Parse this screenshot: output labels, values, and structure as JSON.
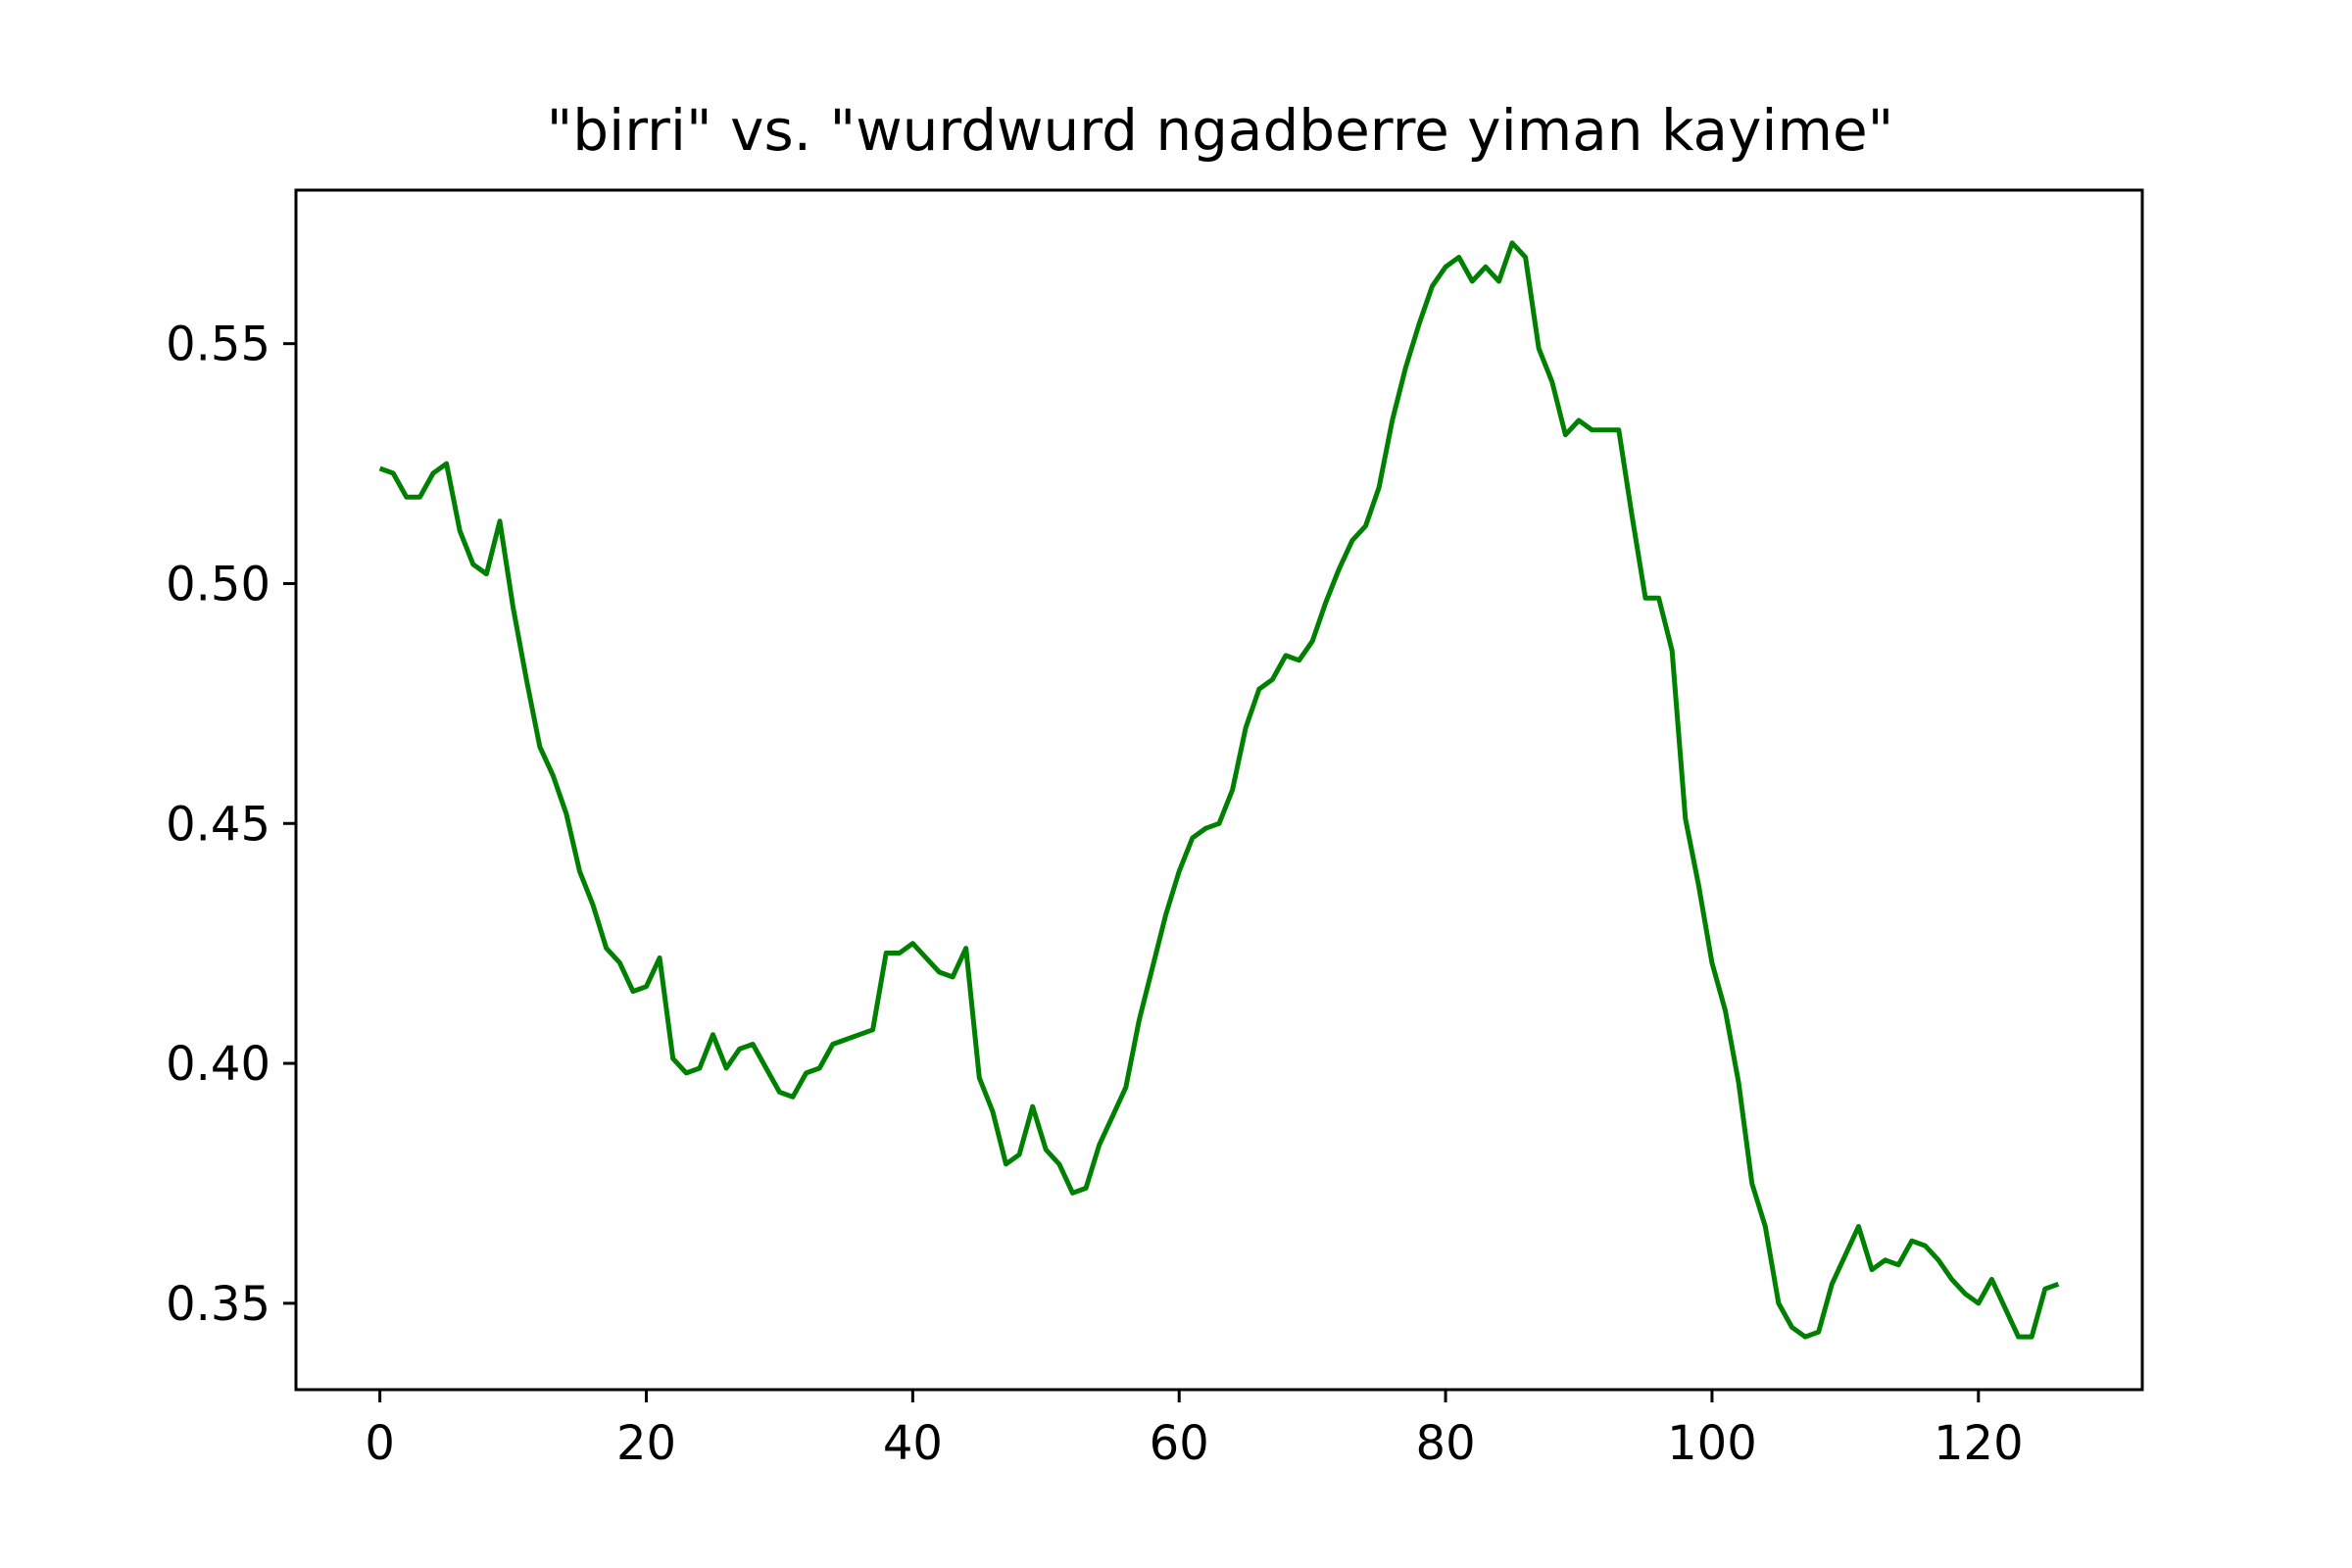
{
  "chart_data": {
    "type": "line",
    "title": "\"birri\" vs. \"wurdwurd ngadberre yiman kayime\"",
    "xlabel": "",
    "ylabel": "",
    "xlim": [
      -6.3,
      132.3
    ],
    "ylim": [
      0.332,
      0.582
    ],
    "xticks": [
      0,
      20,
      40,
      60,
      80,
      100,
      120
    ],
    "xtick_labels": [
      "0",
      "20",
      "40",
      "60",
      "80",
      "100",
      "120"
    ],
    "yticks": [
      0.35,
      0.4,
      0.45,
      0.5,
      0.55
    ],
    "ytick_labels": [
      "0.35",
      "0.40",
      "0.45",
      "0.50",
      "0.55"
    ],
    "grid": false,
    "legend": "none",
    "series": [
      {
        "color": "#008000",
        "x": [
          0,
          1,
          2,
          3,
          4,
          5,
          6,
          7,
          8,
          9,
          10,
          11,
          12,
          13,
          14,
          15,
          16,
          17,
          18,
          19,
          20,
          21,
          22,
          23,
          24,
          25,
          26,
          27,
          28,
          29,
          30,
          31,
          32,
          33,
          34,
          35,
          36,
          37,
          38,
          39,
          40,
          41,
          42,
          43,
          44,
          45,
          46,
          47,
          48,
          49,
          50,
          51,
          52,
          53,
          54,
          55,
          56,
          57,
          58,
          59,
          60,
          61,
          62,
          63,
          64,
          65,
          66,
          67,
          68,
          69,
          70,
          71,
          72,
          73,
          74,
          75,
          76,
          77,
          78,
          79,
          80,
          81,
          82,
          83,
          84,
          85,
          86,
          87,
          88,
          89,
          90,
          91,
          92,
          93,
          94,
          95,
          96,
          97,
          98,
          99,
          100,
          101,
          102,
          103,
          104,
          105,
          106,
          107,
          108,
          109,
          110,
          111,
          112,
          113,
          114,
          115,
          116,
          117,
          118,
          119,
          120,
          121,
          122,
          123,
          124,
          125,
          126
        ],
        "y": [
          0.524,
          0.523,
          0.518,
          0.518,
          0.523,
          0.525,
          0.511,
          0.504,
          0.502,
          0.513,
          0.495,
          0.48,
          0.466,
          0.46,
          0.452,
          0.44,
          0.433,
          0.424,
          0.421,
          0.415,
          0.416,
          0.422,
          0.401,
          0.398,
          0.399,
          0.406,
          0.399,
          0.403,
          0.404,
          0.399,
          0.394,
          0.393,
          0.398,
          0.399,
          0.404,
          0.405,
          0.406,
          0.407,
          0.423,
          0.423,
          0.425,
          0.422,
          0.419,
          0.418,
          0.424,
          0.397,
          0.39,
          0.379,
          0.381,
          0.391,
          0.382,
          0.379,
          0.373,
          0.374,
          0.383,
          0.389,
          0.395,
          0.409,
          0.42,
          0.431,
          0.44,
          0.447,
          0.449,
          0.45,
          0.457,
          0.47,
          0.478,
          0.48,
          0.485,
          0.484,
          0.488,
          0.496,
          0.503,
          0.509,
          0.512,
          0.52,
          0.534,
          0.545,
          0.554,
          0.562,
          0.566,
          0.568,
          0.563,
          0.566,
          0.563,
          0.571,
          0.568,
          0.549,
          0.542,
          0.531,
          0.534,
          0.532,
          0.532,
          0.532,
          0.514,
          0.497,
          0.497,
          0.486,
          0.451,
          0.437,
          0.421,
          0.411,
          0.396,
          0.375,
          0.366,
          0.35,
          0.345,
          0.343,
          0.344,
          0.354,
          0.36,
          0.366,
          0.357,
          0.359,
          0.358,
          0.363,
          0.362,
          0.359,
          0.355,
          0.352,
          0.35,
          0.355,
          0.349,
          0.343,
          0.343,
          0.353,
          0.354
        ]
      }
    ]
  }
}
